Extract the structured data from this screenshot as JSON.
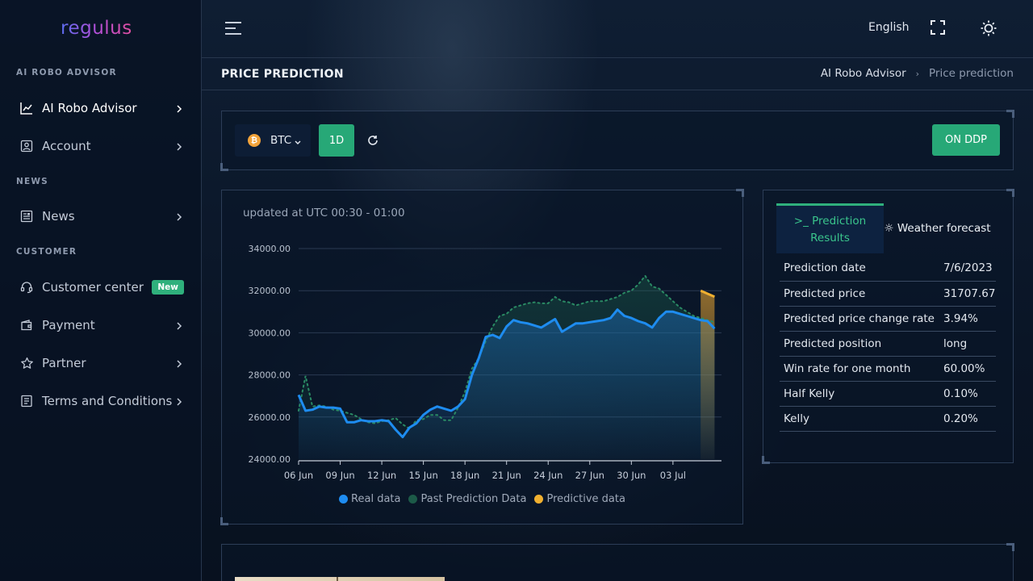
{
  "app": {
    "logo": "regulus"
  },
  "sidebar": {
    "sections": [
      "AI ROBO ADVISOR",
      "NEWS",
      "CUSTOMER"
    ],
    "items": [
      {
        "label": "AI Robo Advisor",
        "icon": "chart-line-icon"
      },
      {
        "label": "Account",
        "icon": "user-box-icon"
      },
      {
        "label": "News",
        "icon": "newspaper-icon"
      },
      {
        "label": "Customer center",
        "icon": "headset-icon",
        "badge": "New"
      },
      {
        "label": "Payment",
        "icon": "wallet-icon"
      },
      {
        "label": "Partner",
        "icon": "star-icon"
      },
      {
        "label": "Terms and Conditions",
        "icon": "document-icon"
      }
    ]
  },
  "header": {
    "language": "English"
  },
  "page": {
    "title": "PRICE PREDICTION",
    "breadcrumb": [
      "AI Robo Advisor",
      "Price prediction"
    ]
  },
  "toolbar": {
    "coin": "BTC",
    "coin_symbol": "₿",
    "interval": "1D",
    "ddp_label": "ON DDP"
  },
  "chart": {
    "updated": "updated at UTC 00:30 - 01:00",
    "legend": [
      "Real data",
      "Past Prediction Data",
      "Predictive data"
    ]
  },
  "chart_data": {
    "type": "line",
    "yticks": [
      "34000.00",
      "32000.00",
      "30000.00",
      "28000.00",
      "26000.00",
      "24000.00"
    ],
    "ylim": [
      24000,
      34000
    ],
    "xticks": [
      "06 Jun",
      "09 Jun",
      "12 Jun",
      "15 Jun",
      "18 Jun",
      "21 Jun",
      "24 Jun",
      "27 Jun",
      "30 Jun",
      "03 Jul"
    ],
    "colors": {
      "real": "#1e8cf0",
      "past": "#1f6e52",
      "predict": "#f0b030"
    },
    "series": [
      {
        "name": "Real data",
        "x": [
          6,
          6.5,
          7,
          7.5,
          8,
          8.5,
          9,
          9.5,
          10,
          10.5,
          11,
          11.5,
          12,
          12.5,
          13,
          13.5,
          14,
          14.5,
          15,
          15.5,
          16,
          16.5,
          17,
          17.5,
          18,
          18.5,
          19,
          19.5,
          20,
          20.5,
          21,
          21.5,
          22,
          22.5,
          23,
          23.5,
          24,
          24.5,
          25,
          25.5,
          26,
          26.5,
          27,
          27.5,
          28,
          28.5,
          29,
          29.5,
          30,
          30.5,
          31,
          31.5,
          32,
          32.5,
          33,
          33.5,
          34,
          34.5,
          35,
          35.5,
          36
        ],
        "values": [
          27050,
          26300,
          26350,
          26500,
          26450,
          26450,
          26400,
          25750,
          25750,
          25850,
          25800,
          25800,
          25850,
          25800,
          25400,
          25050,
          25500,
          25700,
          26100,
          26350,
          26500,
          26400,
          26300,
          26500,
          26850,
          28000,
          28800,
          29800,
          29900,
          29750,
          30300,
          30600,
          30500,
          30450,
          30350,
          30250,
          30450,
          30650,
          30050,
          30250,
          30450,
          30450,
          30500,
          30550,
          30600,
          30700,
          31100,
          30800,
          30700,
          30550,
          30450,
          30250,
          30700,
          31000,
          31000,
          30900,
          30800,
          30700,
          30600,
          30550,
          30200
        ]
      },
      {
        "name": "Past Prediction Data",
        "x": [
          6,
          6.5,
          7,
          7.5,
          8,
          8.5,
          9,
          9.5,
          10,
          10.5,
          11,
          11.5,
          12,
          12.5,
          13,
          13.5,
          14,
          14.5,
          15,
          15.5,
          16,
          16.5,
          17,
          17.5,
          18,
          18.5,
          19,
          19.5,
          20,
          20.5,
          21,
          21.5,
          22,
          22.5,
          23,
          23.5,
          24,
          24.5,
          25,
          25.5,
          26,
          26.5,
          27,
          27.5,
          28,
          28.5,
          29,
          29.5,
          30,
          30.5,
          31,
          31.5,
          32,
          32.5,
          33,
          33.5,
          34,
          34.5,
          35,
          35.5,
          36
        ],
        "values": [
          26300,
          27950,
          26500,
          26550,
          26500,
          26350,
          26300,
          26200,
          26100,
          25900,
          25750,
          25700,
          25800,
          25850,
          25950,
          25650,
          25450,
          25850,
          25900,
          26100,
          26100,
          25850,
          25850,
          26450,
          27200,
          28300,
          28800,
          29600,
          30300,
          30800,
          30900,
          31200,
          31300,
          31400,
          31450,
          31400,
          31400,
          31700,
          31500,
          31450,
          31300,
          31400,
          31500,
          31500,
          31500,
          31600,
          31700,
          31900,
          32000,
          32300,
          32700,
          32200,
          32100,
          31800,
          31500,
          31200,
          31000,
          30800,
          30700,
          30600,
          30500
        ]
      },
      {
        "name": "Predictive data",
        "x": [
          35,
          36
        ],
        "values": [
          32000,
          31707.67
        ]
      }
    ]
  },
  "prediction": {
    "tabs": [
      {
        "label": "Prediction Results",
        "icon": "terminal-icon"
      },
      {
        "label": "Weather forecast",
        "icon": "weather-icon"
      }
    ],
    "rows": [
      {
        "label": "Prediction date",
        "value": "7/6/2023"
      },
      {
        "label": "Predicted price",
        "value": "31707.67"
      },
      {
        "label": "Predicted price change rate",
        "value": "3.94%"
      },
      {
        "label": "Predicted position",
        "value": "long"
      },
      {
        "label": "Win rate for one month",
        "value": "60.00%"
      },
      {
        "label": "Half Kelly",
        "value": "0.10%"
      },
      {
        "label": "Kelly",
        "value": "0.20%"
      }
    ]
  }
}
